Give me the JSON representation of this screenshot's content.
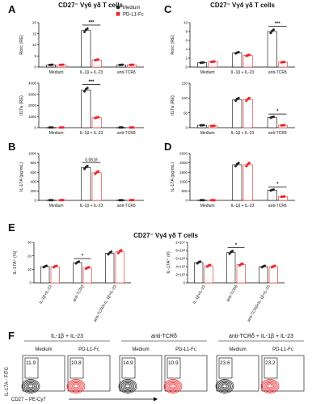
{
  "chart_data": [
    {
      "panel": "A",
      "id": "A-top",
      "type": "bar",
      "title": "CD27⁻ Vγ6 γδ T cells",
      "categories": [
        "Medium",
        "IL-1β + IL-23",
        "anti-TCRδ"
      ],
      "ylabel": "Rorc (RE)",
      "ylim": [
        0,
        20
      ],
      "yticks": [
        "0",
        "5",
        "10",
        "15",
        "20"
      ],
      "series": [
        {
          "name": "Medium",
          "values": [
            1,
            16.5,
            1
          ],
          "color": "#222222"
        },
        {
          "name": "PD-L1-Fc",
          "values": [
            1,
            3.2,
            1
          ],
          "color": "#e8252a"
        }
      ],
      "annotations": [
        {
          "category": "IL-1β + IL-23",
          "text": "***"
        }
      ]
    },
    {
      "panel": "A",
      "id": "A-bot",
      "type": "bar",
      "categories": [
        "Medium",
        "IL-1β + IL-23",
        "anti-TCRδ"
      ],
      "ylabel": "Il17a (RE)",
      "ylim": [
        0,
        4000
      ],
      "yticks": [
        "0",
        "1000",
        "2000",
        "3000",
        "4000"
      ],
      "series": [
        {
          "name": "Medium",
          "values": [
            15,
            3400,
            15
          ],
          "color": "#222222"
        },
        {
          "name": "PD-L1-Fc",
          "values": [
            15,
            900,
            15
          ],
          "color": "#e8252a"
        }
      ],
      "annotations": [
        {
          "category": "IL-1β + IL-23",
          "text": "***"
        }
      ]
    },
    {
      "panel": "B",
      "id": "B",
      "type": "bar",
      "categories": [
        "Medium",
        "IL-1β + IL-23",
        "anti-TCRδ"
      ],
      "ylabel": "IL-17A (pg/mL)",
      "ylim": [
        0,
        1000
      ],
      "yticks": [
        "0",
        "200",
        "400",
        "600",
        "800",
        "1000"
      ],
      "series": [
        {
          "name": "Medium",
          "values": [
            5,
            700,
            5
          ],
          "color": "#222222"
        },
        {
          "name": "PD-L1-Fc",
          "values": [
            5,
            590,
            5
          ],
          "color": "#e8252a"
        }
      ],
      "annotations": [
        {
          "category": "IL-1β + IL-23",
          "text": "0.0618"
        }
      ]
    },
    {
      "panel": "C",
      "id": "C-top",
      "type": "bar",
      "title": "CD27⁻ Vγ4 γδ T cells",
      "categories": [
        "Medium",
        "IL-1β + IL-23",
        "anti-TCRδ"
      ],
      "ylabel": "Rorc (RE)",
      "ylim": [
        0,
        10
      ],
      "yticks": [
        "0",
        "2",
        "4",
        "6",
        "8",
        "10"
      ],
      "series": [
        {
          "name": "Medium",
          "values": [
            1,
            3.2,
            8
          ],
          "color": "#222222"
        },
        {
          "name": "PD-L1-Fc",
          "values": [
            1.2,
            2.6,
            1.1
          ],
          "color": "#e8252a"
        }
      ],
      "annotations": [
        {
          "category": "anti-TCRδ",
          "text": "***"
        }
      ]
    },
    {
      "panel": "C",
      "id": "C-bot",
      "type": "bar",
      "categories": [
        "Medium",
        "IL-1β + IL-23",
        "anti-TCRδ"
      ],
      "ylabel": "Il17a (RE)",
      "ylim": [
        0,
        150
      ],
      "yticks": [
        "0",
        "50",
        "100",
        "150"
      ],
      "series": [
        {
          "name": "Medium",
          "values": [
            8,
            95,
            35
          ],
          "color": "#222222"
        },
        {
          "name": "PD-L1-Fc",
          "values": [
            6,
            95,
            8
          ],
          "color": "#e8252a"
        }
      ],
      "annotations": [
        {
          "category": "anti-TCRδ",
          "text": "*"
        }
      ]
    },
    {
      "panel": "D",
      "id": "D",
      "type": "bar",
      "categories": [
        "Medium",
        "IL-1β + IL-23",
        "anti-TCRδ"
      ],
      "ylabel": "IL-17A (pg/mL)",
      "ylim": [
        0,
        2500
      ],
      "yticks": [
        "0",
        "500",
        "1000",
        "1500",
        "2000",
        "2500"
      ],
      "series": [
        {
          "name": "Medium",
          "values": [
            10,
            1900,
            550
          ],
          "color": "#222222"
        },
        {
          "name": "PD-L1-Fc",
          "values": [
            10,
            1900,
            200
          ],
          "color": "#e8252a"
        }
      ],
      "annotations": [
        {
          "category": "anti-TCRδ",
          "text": "*"
        }
      ]
    },
    {
      "panel": "E",
      "id": "E-left",
      "type": "bar",
      "title": "CD27⁻ Vγ4 γδ T cells",
      "categories": [
        "IL-1β+IL-23",
        "anti-TCRδ",
        "anti-TCRδ+IL-1β+IL-23"
      ],
      "ylabel": "IL-17A⁺ (%)",
      "ylim": [
        0,
        30
      ],
      "yticks": [
        "0",
        "10",
        "20",
        "30"
      ],
      "series": [
        {
          "name": "Medium",
          "values": [
            12,
            15,
            22
          ],
          "color": "#222222"
        },
        {
          "name": "PD-L1-Fc",
          "values": [
            12,
            11,
            23
          ],
          "color": "#e8252a"
        }
      ],
      "annotations": [
        {
          "category": "anti-TCRδ",
          "text": "*"
        }
      ]
    },
    {
      "panel": "E",
      "id": "E-right",
      "type": "bar",
      "categories": [
        "IL-1β+IL-23",
        "anti-TCRδ",
        "anti-TCRδ+IL-1β+IL-23"
      ],
      "ylabel": "IL-17A⁺ (#)",
      "ylim": [
        0,
        10000
      ],
      "yticks": [
        "0",
        "2×10³",
        "4×10³",
        "6×10³",
        "8×10³",
        "1×10⁴"
      ],
      "series": [
        {
          "name": "Medium",
          "values": [
            5000,
            7500,
            4000
          ],
          "color": "#222222"
        },
        {
          "name": "PD-L1-Fc",
          "values": [
            4200,
            4500,
            4000
          ],
          "color": "#e8252a"
        }
      ],
      "annotations": [
        {
          "category": "anti-TCRδ",
          "text": "*"
        }
      ]
    }
  ],
  "panel_labels": {
    "A": "A",
    "B": "B",
    "C": "C",
    "D": "D",
    "E": "E",
    "F": "F"
  },
  "legend": [
    {
      "label": "Medium",
      "color": "#222222"
    },
    {
      "label": "PD-L1-Fc",
      "color": "#e8252a"
    }
  ],
  "flow": {
    "groups": [
      {
        "title": "IL-1β + IL-23",
        "plots": [
          {
            "label": "Medium",
            "value": "11.9",
            "color": "#222222"
          },
          {
            "label": "PD-L1-Fc",
            "value": "10.8",
            "color": "#e8252a"
          }
        ]
      },
      {
        "title": "anti-TCRδ",
        "plots": [
          {
            "label": "Medium",
            "value": "14.9",
            "color": "#222222"
          },
          {
            "label": "PD-L1-Fc",
            "value": "10.9",
            "color": "#e8252a"
          }
        ]
      },
      {
        "title": "anti-TCRδ + IL-1β + IL-23",
        "plots": [
          {
            "label": "Medium",
            "value": "23.6",
            "color": "#222222"
          },
          {
            "label": "PD-L1-Fc",
            "value": "23.2",
            "color": "#e8252a"
          }
        ]
      }
    ],
    "yaxis": "IL-17A - FITC",
    "xaxis": "CD27 – PE-Cy7"
  }
}
